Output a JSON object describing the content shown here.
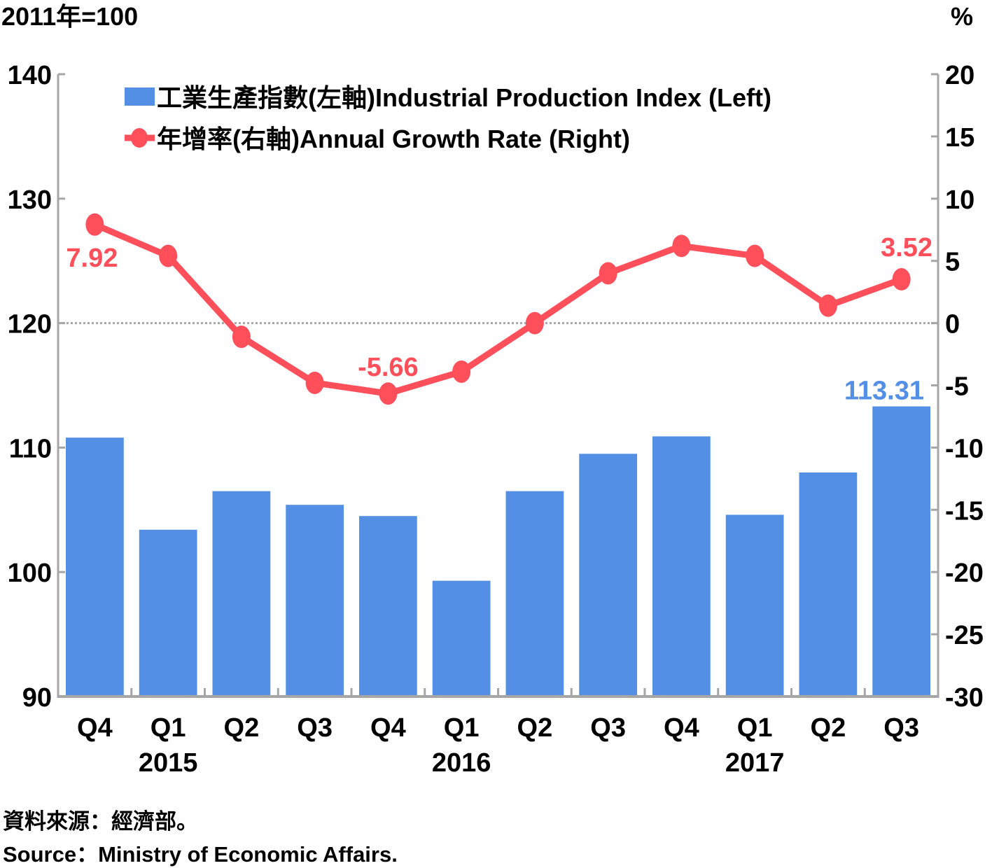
{
  "chart_data": {
    "type": "bar",
    "title": "",
    "left_axis_label": "2011年=100",
    "right_axis_label": "%",
    "categories": [
      "Q4",
      "Q1",
      "Q2",
      "Q3",
      "Q4",
      "Q1",
      "Q2",
      "Q3",
      "Q4",
      "Q1",
      "Q2",
      "Q3"
    ],
    "year_labels": [
      {
        "label": "2015",
        "category_index": 1
      },
      {
        "label": "2016",
        "category_index": 5
      },
      {
        "label": "2017",
        "category_index": 9
      }
    ],
    "left_axis": {
      "min": 90,
      "max": 140,
      "ticks": [
        90,
        100,
        110,
        120,
        130,
        140
      ]
    },
    "right_axis": {
      "min": -30,
      "max": 20,
      "ticks": [
        -30,
        -25,
        -20,
        -15,
        -10,
        -5,
        0,
        5,
        10,
        15,
        20
      ]
    },
    "zero_reference_line": "dotted",
    "series": [
      {
        "name": "工業生產指數(左軸)Industrial Production Index (Left)",
        "type": "bar",
        "axis": "left",
        "color": "#5390E5",
        "values": [
          110.8,
          103.4,
          106.5,
          105.4,
          104.5,
          99.3,
          106.5,
          109.5,
          110.9,
          104.6,
          108.0,
          113.31
        ],
        "labels": [
          {
            "index": 11,
            "text": "113.31"
          }
        ]
      },
      {
        "name": "年增率(右軸)Annual Growth Rate (Right)",
        "type": "line",
        "axis": "right",
        "color": "#FF4F5B",
        "values": [
          7.92,
          5.4,
          -1.1,
          -4.8,
          -5.66,
          -3.9,
          0.0,
          4.0,
          6.2,
          5.4,
          1.4,
          3.52
        ],
        "labels": [
          {
            "index": 0,
            "text": "7.92",
            "position": "below"
          },
          {
            "index": 4,
            "text": "-5.66",
            "position": "above"
          },
          {
            "index": 11,
            "text": "3.52",
            "position": "above"
          }
        ]
      }
    ],
    "legend": "top-center",
    "grid": false
  },
  "source": {
    "zh": "資料來源：經濟部。",
    "en": "Source：Ministry of Economic Affairs."
  }
}
